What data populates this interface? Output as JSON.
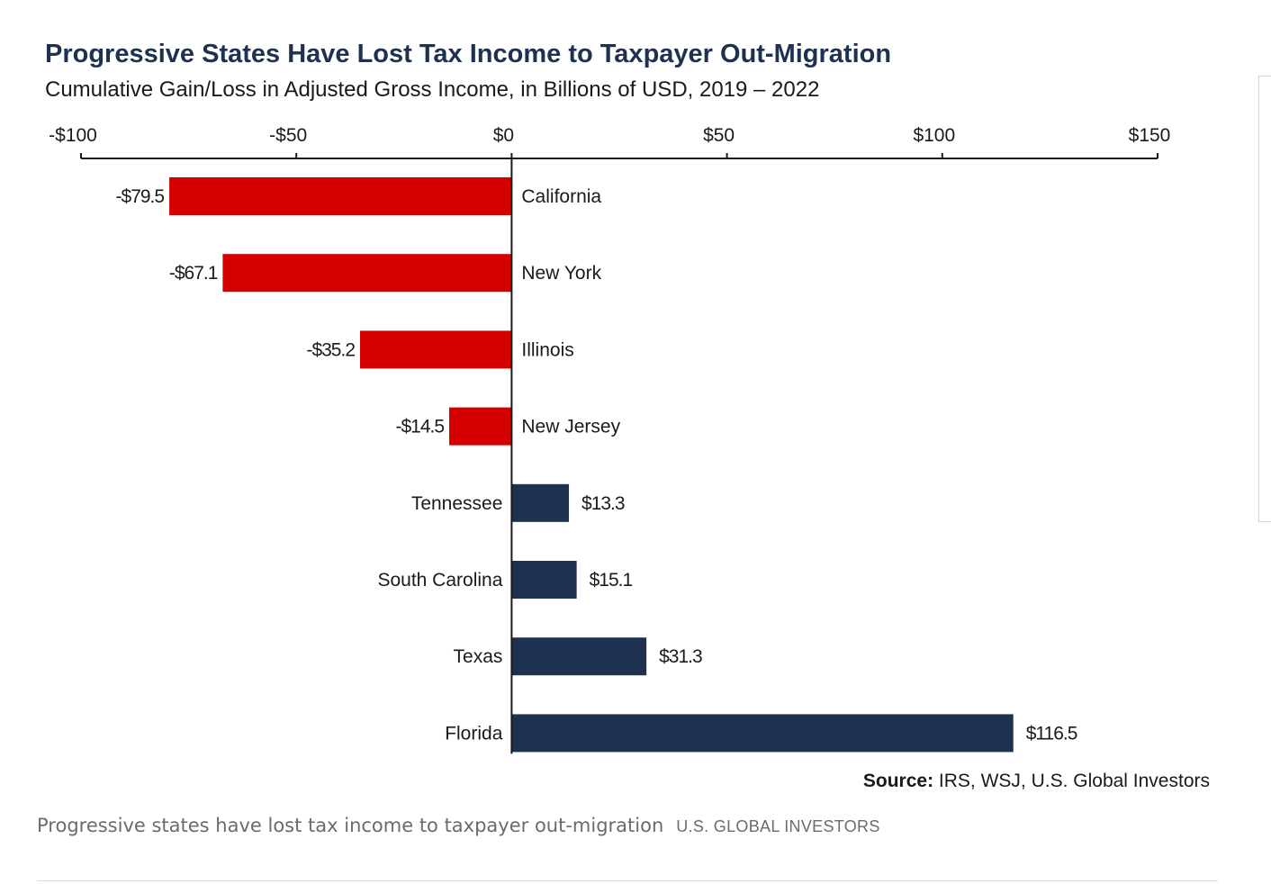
{
  "chart_data": {
    "type": "bar",
    "orientation": "horizontal",
    "title": "Progressive States Have Lost Tax Income to Taxpayer Out-Migration",
    "subtitle": "Cumulative Gain/Loss in Adjusted Gross Income, in Billions of USD, 2019 – 2022",
    "xlim": [
      -100,
      150
    ],
    "xticks": [
      -100,
      -50,
      0,
      50,
      100,
      150
    ],
    "xtick_labels": [
      "-$100",
      "-$50",
      "$0",
      "$50",
      "$100",
      "$150"
    ],
    "categories": [
      "California",
      "New York",
      "Illinois",
      "New Jersey",
      "Tennessee",
      "South Carolina",
      "Texas",
      "Florida"
    ],
    "values": [
      -79.5,
      -67.1,
      -35.2,
      -14.5,
      13.3,
      15.1,
      31.3,
      116.5
    ],
    "value_labels": [
      "-$79.5",
      "-$67.1",
      "-$35.2",
      "-$14.5",
      "$13.3",
      "$15.1",
      "$31.3",
      "$116.5"
    ],
    "colors": {
      "negative": "#d40000",
      "positive": "#1f3150",
      "axis": "#1a1a1a"
    },
    "axis_position": "top",
    "grid": false,
    "legend": "none"
  },
  "source": {
    "label": "Source:",
    "text": " IRS, WSJ, U.S. Global Investors"
  },
  "caption": {
    "text": "Progressive states have lost tax income to taxpayer out-migration",
    "credit": "U.S. GLOBAL INVESTORS"
  }
}
